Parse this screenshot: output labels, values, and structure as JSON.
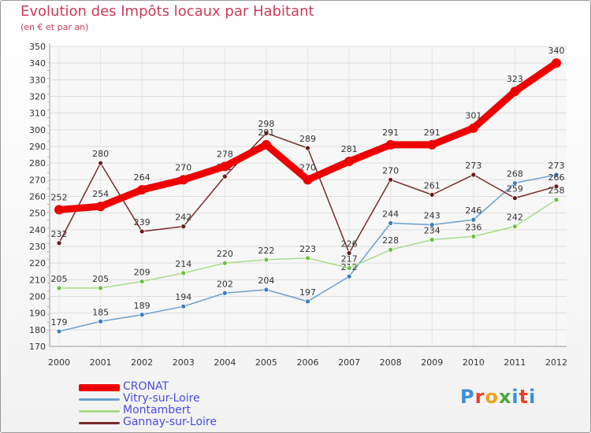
{
  "header": {
    "title": "Evolution des Impôts locaux par Habitant",
    "subtitle": "(en € et par an)"
  },
  "logo": {
    "text": "Proxiti",
    "colors": [
      "#3a8fd8",
      "#e8402a",
      "#f0a020",
      "#4aa83a",
      "#3a8fd8",
      "#e8402a",
      "#3a8fd8"
    ]
  },
  "chart_data": {
    "type": "line",
    "title": "Evolution des Impôts locaux par Habitant",
    "subtitle": "(en € et par an)",
    "xlabel": "",
    "ylabel": "",
    "x": [
      "2000",
      "2001",
      "2002",
      "2003",
      "2004",
      "2005",
      "2006",
      "2007",
      "2008",
      "2009",
      "2010",
      "2011",
      "2012"
    ],
    "ylim": [
      170,
      350
    ],
    "yticks": [
      170,
      180,
      190,
      200,
      210,
      220,
      230,
      240,
      250,
      260,
      270,
      280,
      290,
      300,
      310,
      320,
      330,
      340,
      350
    ],
    "grid": true,
    "legend_position": "bottom-left",
    "series": [
      {
        "name": "Vitry-sur-Loire",
        "color": "#6aa0d0",
        "marker": "#3a7fc0",
        "width": 1.5,
        "values": [
          179,
          185,
          189,
          194,
          202,
          204,
          197,
          212,
          244,
          243,
          246,
          268,
          273
        ],
        "labels": [
          "179",
          "185",
          "189",
          "194",
          "202",
          "204",
          "197",
          "212",
          "244",
          "243",
          "246",
          "268",
          "273"
        ]
      },
      {
        "name": "Montambert",
        "color": "#a8dc88",
        "marker": "#6cc040",
        "width": 1.5,
        "values": [
          205,
          205,
          209,
          214,
          220,
          222,
          223,
          217,
          228,
          234,
          236,
          242,
          258
        ],
        "labels": [
          "205",
          "205",
          "209",
          "214",
          "220",
          "222",
          "223",
          "217",
          "228",
          "234",
          "236",
          "242",
          "258"
        ]
      },
      {
        "name": "Gannay-sur-Loire",
        "color": "#7a2a2a",
        "marker": "#6a1a1a",
        "width": 1.5,
        "values": [
          232,
          280,
          239,
          242,
          272,
          298,
          289,
          226,
          270,
          261,
          273,
          259,
          266
        ],
        "labels": [
          "232",
          "280",
          "239",
          "242",
          "272",
          "298",
          "289",
          "226",
          "270",
          "261",
          "273",
          "259",
          "266"
        ]
      },
      {
        "name": "CRONAT",
        "color": "#ee0000",
        "marker": "#ee0000",
        "width": 9,
        "values": [
          252,
          254,
          264,
          270,
          278,
          291,
          270,
          281,
          291,
          291,
          301,
          323,
          340
        ],
        "labels": [
          "252",
          "254",
          "264",
          "270",
          "278",
          "291",
          "270",
          "281",
          "291",
          "291",
          "301",
          "323",
          "340"
        ]
      }
    ],
    "legend": [
      {
        "name": "CRONAT",
        "color": "#ee0000",
        "thickness": 9
      },
      {
        "name": "Vitry-sur-Loire",
        "color": "#6aa0d0",
        "thickness": 3
      },
      {
        "name": "Montambert",
        "color": "#a8dc88",
        "thickness": 3
      },
      {
        "name": "Gannay-sur-Loire",
        "color": "#7a2a2a",
        "thickness": 3
      }
    ]
  }
}
